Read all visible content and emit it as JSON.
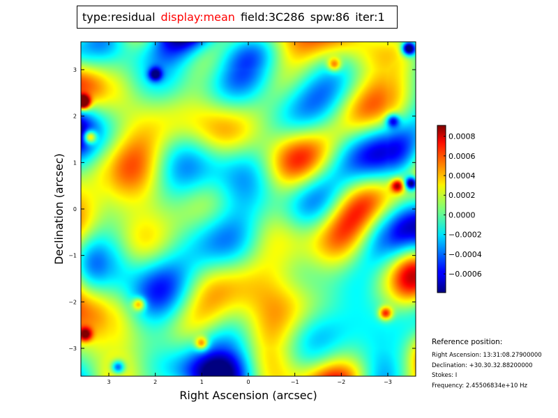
{
  "title": {
    "type": "type:residual",
    "display": "display:mean",
    "field": "field:3C286",
    "spw": "spw:86",
    "iter": "iter:1"
  },
  "colors": {
    "display_highlight": "#ff0000",
    "colormap": "jet"
  },
  "chart_data": {
    "type": "heatmap",
    "title": "",
    "xlabel": "Right Ascension (arcsec)",
    "ylabel": "Declination (arcsec)",
    "xlim": [
      3.6,
      -3.6
    ],
    "ylim": [
      -3.6,
      3.6
    ],
    "x_ticks": [
      3,
      2,
      1,
      0,
      -1,
      -2,
      -3
    ],
    "x_tick_labels": [
      "3",
      "2",
      "1",
      "0",
      "−1",
      "−2",
      "−3"
    ],
    "y_ticks": [
      3,
      2,
      1,
      0,
      -1,
      -2,
      -3
    ],
    "y_tick_labels": [
      "3",
      "2",
      "1",
      "0",
      "−1",
      "−2",
      "−3"
    ],
    "colormap": "jet",
    "colorbar": {
      "vmin": -0.00079,
      "vmax": 0.00091,
      "ticks": [
        0.0008,
        0.0006,
        0.0004,
        0.0002,
        0.0,
        -0.0002,
        -0.0004,
        -0.0006
      ],
      "tick_labels": [
        "0.0008",
        "0.0006",
        "0.0004",
        "0.0002",
        "0.0000",
        "−0.0002",
        "−0.0004",
        "−0.0006"
      ]
    },
    "notable_features": [
      {
        "x": 2.0,
        "y": 2.9,
        "value": -0.0007
      },
      {
        "x": 3.55,
        "y": 2.3,
        "value": 0.0009
      },
      {
        "x": 3.4,
        "y": 1.55,
        "value": 0.0006
      },
      {
        "x": -3.45,
        "y": 3.45,
        "value": -0.0008
      },
      {
        "x": -3.1,
        "y": 1.9,
        "value": -0.0006
      },
      {
        "x": -3.2,
        "y": 0.5,
        "value": 0.0006
      },
      {
        "x": -3.5,
        "y": 0.55,
        "value": -0.0007
      },
      {
        "x": -2.95,
        "y": -2.25,
        "value": 0.0007
      },
      {
        "x": 2.35,
        "y": -2.05,
        "value": 0.0006
      },
      {
        "x": 1.0,
        "y": -2.9,
        "value": 0.0006
      },
      {
        "x": -1.85,
        "y": 3.1,
        "value": 0.0005
      },
      {
        "x": 2.8,
        "y": -3.4,
        "value": -0.0005
      },
      {
        "x": 3.5,
        "y": -2.7,
        "value": 0.0005
      }
    ]
  },
  "reference": {
    "title": "Reference position:",
    "ra": "Right Ascension: 13:31:08.27900000",
    "dec": "Declination: +30.30.32.88200000",
    "stokes": "Stokes: I",
    "frequency": "Frequency: 2.45506834e+10 Hz"
  }
}
